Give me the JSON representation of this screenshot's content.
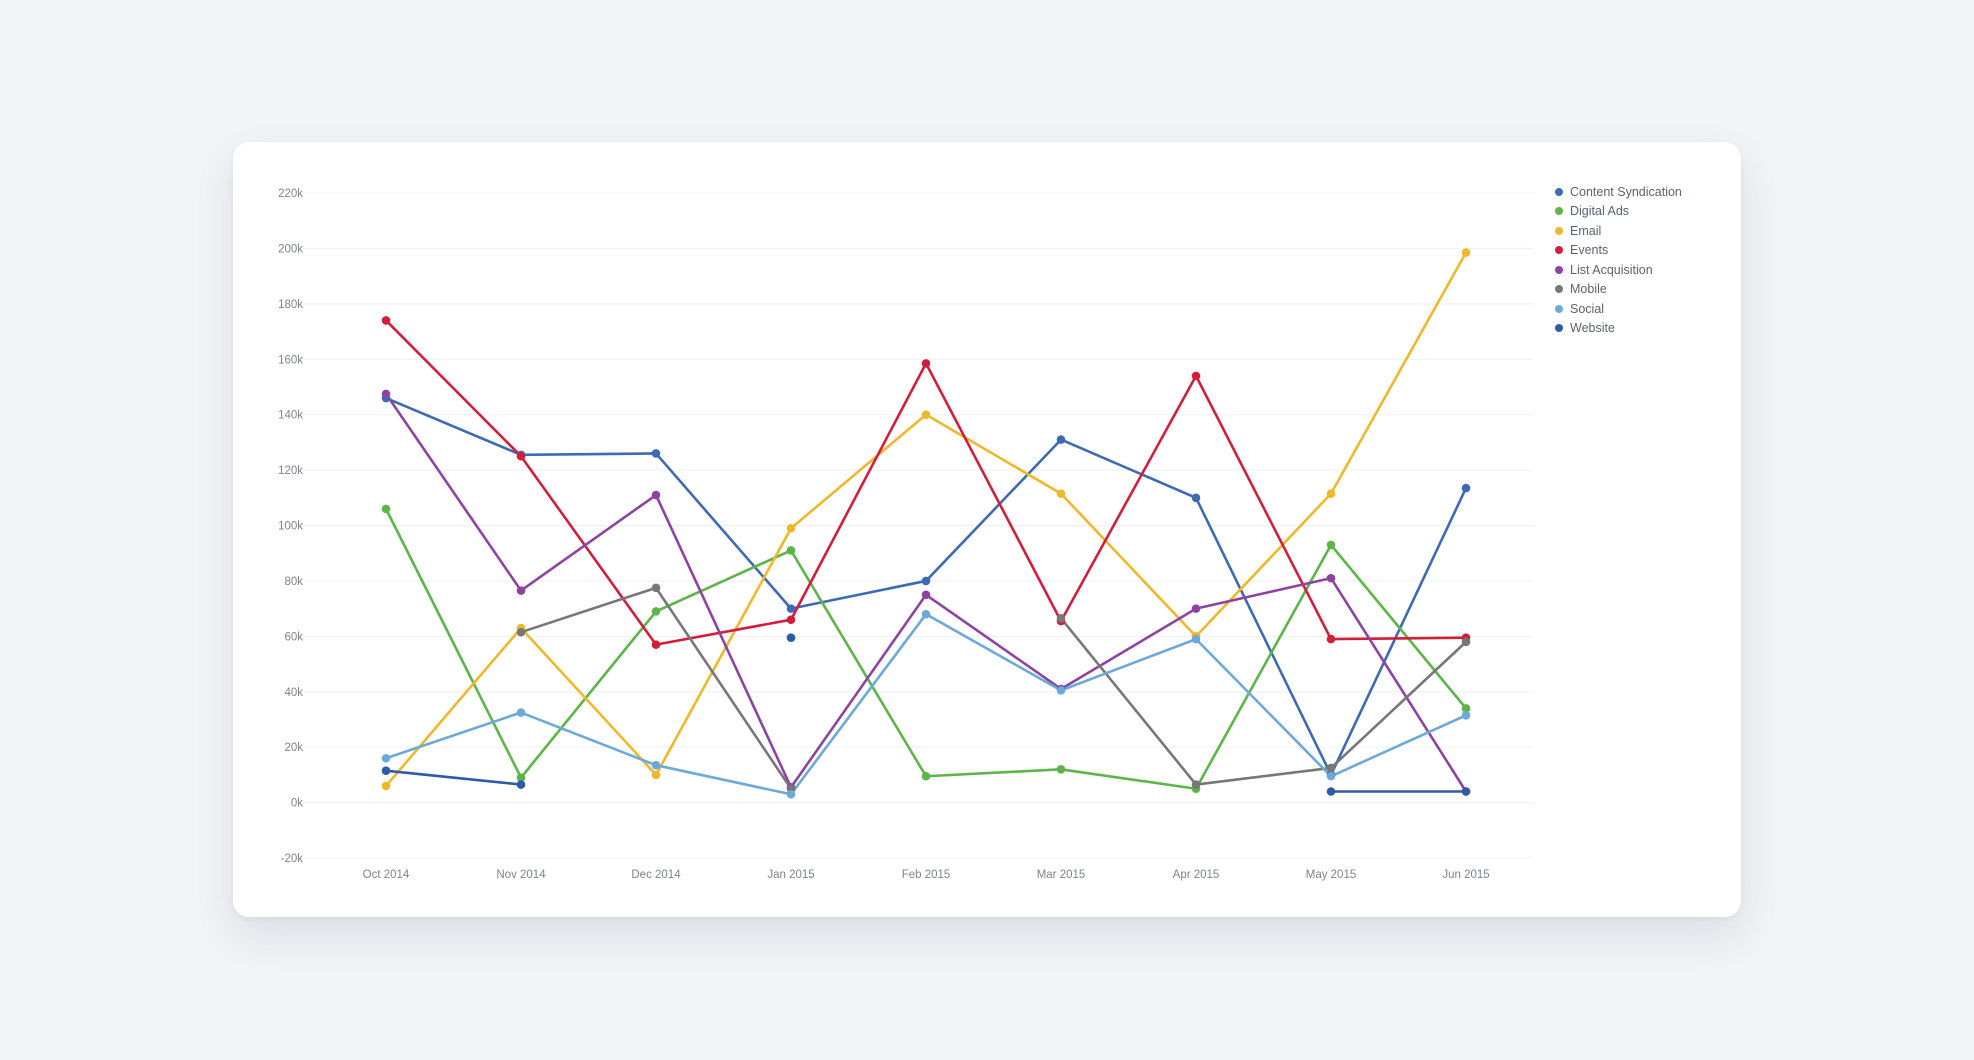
{
  "chart_data": {
    "type": "line",
    "categories": [
      "Oct 2014",
      "Nov 2014",
      "Dec 2014",
      "Jan 2015",
      "Feb 2015",
      "Mar 2015",
      "Apr 2015",
      "May 2015",
      "Jun 2015"
    ],
    "ylim": [
      -20000,
      220000
    ],
    "yticks": [
      -20000,
      0,
      20000,
      40000,
      60000,
      80000,
      100000,
      120000,
      140000,
      160000,
      180000,
      200000,
      220000
    ],
    "ytick_labels": [
      "-20k",
      "0k",
      "20k",
      "40k",
      "60k",
      "80k",
      "100k",
      "120k",
      "140k",
      "160k",
      "180k",
      "200k",
      "220k"
    ],
    "grid": true,
    "legend_position": "top-right",
    "series": [
      {
        "name": "Content Syndication",
        "color": "#3d6bb3",
        "values": [
          146000,
          125500,
          126000,
          70000,
          80000,
          131000,
          110000,
          10000,
          113500
        ]
      },
      {
        "name": "Digital Ads",
        "color": "#5cb547",
        "values": [
          106000,
          9000,
          69000,
          91000,
          9500,
          12000,
          5000,
          93000,
          34000
        ]
      },
      {
        "name": "Email",
        "color": "#efb82a",
        "values": [
          6000,
          63000,
          10000,
          99000,
          140000,
          111500,
          60000,
          111500,
          198500
        ]
      },
      {
        "name": "Events",
        "color": "#d01f3d",
        "values": [
          174000,
          125000,
          57000,
          66000,
          158500,
          65500,
          154000,
          59000,
          59500
        ]
      },
      {
        "name": "List Acquisition",
        "color": "#8d43a2",
        "values": [
          147500,
          76500,
          111000,
          5500,
          75000,
          41000,
          70000,
          81000,
          4000
        ]
      },
      {
        "name": "Mobile",
        "color": "#777777",
        "values": [
          null,
          61500,
          77500,
          5000,
          null,
          66500,
          6500,
          12500,
          58000
        ]
      },
      {
        "name": "Social",
        "color": "#6baad8",
        "values": [
          16000,
          32500,
          13500,
          3000,
          68000,
          40500,
          59000,
          9500,
          31500
        ]
      },
      {
        "name": "Website",
        "color": "#2f5aa8",
        "values": [
          11500,
          6500,
          null,
          59500,
          null,
          null,
          null,
          4000,
          4000
        ]
      }
    ]
  }
}
